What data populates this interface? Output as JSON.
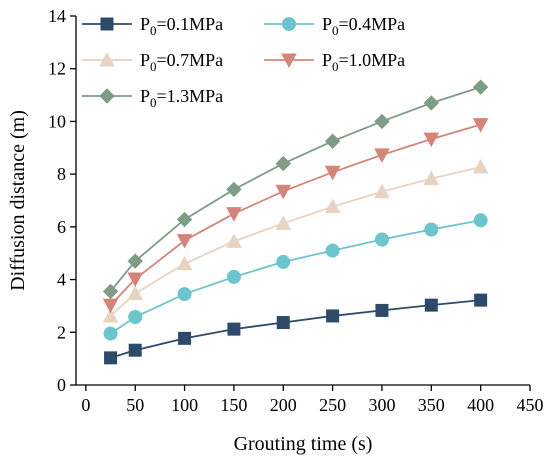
{
  "chart_data": {
    "type": "line",
    "xlabel": "Grouting time (s)",
    "ylabel": "Diffusion distance (m)",
    "xlim": [
      -10,
      450
    ],
    "ylim": [
      0,
      14
    ],
    "xticks": [
      0,
      50,
      100,
      150,
      200,
      250,
      300,
      350,
      400,
      450
    ],
    "yticks": [
      0,
      2,
      4,
      6,
      8,
      10,
      12,
      14
    ],
    "x": [
      25,
      50,
      100,
      150,
      200,
      250,
      300,
      350,
      400
    ],
    "grid": false,
    "legend_position": "top-left",
    "series": [
      {
        "name": "P",
        "sub": "0",
        "suffix": "=0.1MPa",
        "marker": "square",
        "color": "#2e4a6b",
        "values": [
          1.03,
          1.32,
          1.77,
          2.12,
          2.37,
          2.62,
          2.83,
          3.03,
          3.22
        ]
      },
      {
        "name": "P",
        "sub": "0",
        "suffix": "=0.4MPa",
        "marker": "circle",
        "color": "#6cc4cc",
        "values": [
          1.95,
          2.58,
          3.45,
          4.1,
          4.67,
          5.1,
          5.52,
          5.9,
          6.25
        ]
      },
      {
        "name": "P",
        "sub": "0",
        "suffix": "=0.7MPa",
        "marker": "triangle-up",
        "color": "#e8d2c0",
        "values": [
          2.62,
          3.47,
          4.6,
          5.45,
          6.13,
          6.77,
          7.33,
          7.83,
          8.27
        ]
      },
      {
        "name": "P",
        "sub": "0",
        "suffix": "=1.0MPa",
        "marker": "triangle-down",
        "color": "#d4857a",
        "values": [
          3.03,
          4.02,
          5.48,
          6.5,
          7.35,
          8.07,
          8.73,
          9.33,
          9.88
        ]
      },
      {
        "name": "P",
        "sub": "0",
        "suffix": "=1.3MPa",
        "marker": "diamond",
        "color": "#7f9c86",
        "values": [
          3.55,
          4.7,
          6.28,
          7.42,
          8.4,
          9.25,
          10.0,
          10.7,
          11.3
        ]
      }
    ]
  }
}
